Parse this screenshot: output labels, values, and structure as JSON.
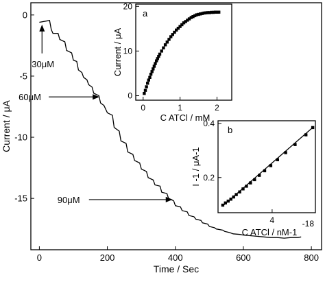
{
  "chart_data": [
    {
      "id": "main",
      "type": "line",
      "xlabel": "Time / Sec",
      "ylabel": "Current / μA",
      "xlim": [
        -25,
        830
      ],
      "ylim": [
        -19.2,
        1.0
      ],
      "xticks": [
        0,
        200,
        400,
        600,
        800
      ],
      "yticks": [
        0,
        -5,
        -10,
        -15
      ],
      "xtick_labels": [
        "0",
        "200",
        "400",
        "600",
        "800"
      ],
      "ytick_labels": [
        "0",
        "-5",
        "-10",
        "-15"
      ],
      "series": [
        {
          "points": [
            [
              0,
              -0.6
            ],
            [
              20,
              -0.5
            ],
            [
              30,
              -0.45
            ],
            [
              35,
              -1.2
            ],
            [
              40,
              -1.5
            ],
            [
              55,
              -1.5
            ],
            [
              60,
              -2.0
            ],
            [
              75,
              -2.2
            ],
            [
              80,
              -2.9
            ],
            [
              95,
              -3.1
            ],
            [
              100,
              -3.7
            ],
            [
              110,
              -3.8
            ],
            [
              115,
              -4.5
            ],
            [
              125,
              -4.7
            ],
            [
              130,
              -5.1
            ],
            [
              140,
              -5.3
            ],
            [
              145,
              -5.7
            ],
            [
              155,
              -5.9
            ],
            [
              160,
              -6.4
            ],
            [
              175,
              -6.6
            ],
            [
              180,
              -7.2
            ],
            [
              190,
              -7.4
            ],
            [
              200,
              -8.0
            ],
            [
              215,
              -8.2
            ],
            [
              220,
              -9.2
            ],
            [
              235,
              -9.5
            ],
            [
              240,
              -10.3
            ],
            [
              255,
              -10.5
            ],
            [
              260,
              -11.2
            ],
            [
              275,
              -11.4
            ],
            [
              280,
              -11.9
            ],
            [
              295,
              -12.1
            ],
            [
              300,
              -12.6
            ],
            [
              315,
              -12.8
            ],
            [
              320,
              -13.3
            ],
            [
              335,
              -13.5
            ],
            [
              340,
              -13.9
            ],
            [
              355,
              -14.0
            ],
            [
              360,
              -14.5
            ],
            [
              375,
              -14.6
            ],
            [
              380,
              -15.0
            ],
            [
              395,
              -15.2
            ],
            [
              400,
              -15.6
            ],
            [
              415,
              -15.7
            ],
            [
              420,
              -16.0
            ],
            [
              435,
              -16.1
            ],
            [
              440,
              -16.4
            ],
            [
              455,
              -16.5
            ],
            [
              460,
              -16.7
            ],
            [
              475,
              -16.8
            ],
            [
              480,
              -17.0
            ],
            [
              495,
              -17.1
            ],
            [
              500,
              -17.3
            ],
            [
              515,
              -17.4
            ],
            [
              520,
              -17.5
            ],
            [
              540,
              -17.6
            ],
            [
              545,
              -17.7
            ],
            [
              560,
              -17.8
            ],
            [
              570,
              -17.9
            ],
            [
              590,
              -17.95
            ],
            [
              600,
              -18.0
            ],
            [
              620,
              -18.05
            ],
            [
              640,
              -18.1
            ],
            [
              660,
              -18.15
            ],
            [
              680,
              -18.2
            ],
            [
              700,
              -18.2
            ],
            [
              720,
              -18.25
            ],
            [
              740,
              -18.2
            ],
            [
              760,
              -18.2
            ],
            [
              770,
              -18.15
            ]
          ]
        }
      ],
      "annotations": [
        {
          "text": "30μM",
          "x": 30,
          "y": -0.45
        },
        {
          "text": "60μM",
          "x": 185,
          "y": -6.7
        },
        {
          "text": "90μM",
          "x": 400,
          "y": -15.1
        }
      ]
    },
    {
      "id": "inset_a",
      "type": "scatter",
      "panel_label": "a",
      "xlabel": "C ATCl / mM",
      "ylabel": "Current / μA",
      "xlim": [
        -0.2,
        2.4
      ],
      "ylim": [
        -1,
        20.5
      ],
      "xticks": [
        0,
        1,
        2
      ],
      "yticks": [
        0,
        10,
        20
      ],
      "xtick_labels": [
        "0",
        "1",
        "2"
      ],
      "ytick_labels": [
        "0",
        "10",
        "20"
      ],
      "points": [
        [
          0.03,
          0.5
        ],
        [
          0.06,
          1.2
        ],
        [
          0.09,
          2.0
        ],
        [
          0.12,
          2.8
        ],
        [
          0.15,
          3.5
        ],
        [
          0.18,
          4.1
        ],
        [
          0.21,
          4.8
        ],
        [
          0.24,
          5.4
        ],
        [
          0.27,
          6.0
        ],
        [
          0.3,
          6.6
        ],
        [
          0.33,
          7.2
        ],
        [
          0.36,
          7.8
        ],
        [
          0.39,
          8.3
        ],
        [
          0.42,
          8.8
        ],
        [
          0.45,
          9.3
        ],
        [
          0.5,
          10.0
        ],
        [
          0.55,
          10.7
        ],
        [
          0.6,
          11.4
        ],
        [
          0.65,
          12.0
        ],
        [
          0.7,
          12.6
        ],
        [
          0.75,
          13.2
        ],
        [
          0.8,
          13.7
        ],
        [
          0.85,
          14.2
        ],
        [
          0.9,
          14.7
        ],
        [
          0.95,
          15.1
        ],
        [
          1.0,
          15.5
        ],
        [
          1.05,
          15.9
        ],
        [
          1.1,
          16.3
        ],
        [
          1.15,
          16.6
        ],
        [
          1.2,
          16.9
        ],
        [
          1.25,
          17.2
        ],
        [
          1.3,
          17.5
        ],
        [
          1.35,
          17.7
        ],
        [
          1.4,
          17.9
        ],
        [
          1.45,
          18.1
        ],
        [
          1.5,
          18.2
        ],
        [
          1.55,
          18.3
        ],
        [
          1.6,
          18.4
        ],
        [
          1.65,
          18.5
        ],
        [
          1.7,
          18.55
        ],
        [
          1.75,
          18.6
        ],
        [
          1.8,
          18.6
        ],
        [
          1.85,
          18.65
        ],
        [
          1.9,
          18.65
        ],
        [
          1.95,
          18.7
        ],
        [
          2.0,
          18.7
        ],
        [
          2.05,
          18.7
        ]
      ]
    },
    {
      "id": "inset_b",
      "type": "scatter",
      "panel_label": "b",
      "xlabel": "C ATCl / nM-1",
      "ylabel": "I -1 / μA-1",
      "x_corner_label": "-18",
      "xlim": [
        0.0,
        7.2
      ],
      "ylim": [
        0.07,
        0.41
      ],
      "xticks": [
        4
      ],
      "yticks": [
        0.2,
        0.4
      ],
      "xtick_labels": [
        "4"
      ],
      "ytick_labels": [
        "0.2",
        "0.4"
      ],
      "fit_line": [
        [
          0.35,
          0.095
        ],
        [
          7.0,
          0.385
        ]
      ],
      "points": [
        [
          0.35,
          0.098
        ],
        [
          0.55,
          0.106
        ],
        [
          0.75,
          0.113
        ],
        [
          0.95,
          0.12
        ],
        [
          1.15,
          0.128
        ],
        [
          1.35,
          0.137
        ],
        [
          1.6,
          0.147
        ],
        [
          1.85,
          0.158
        ],
        [
          2.1,
          0.168
        ],
        [
          2.4,
          0.18
        ],
        [
          2.7,
          0.192
        ],
        [
          3.05,
          0.208
        ],
        [
          3.45,
          0.225
        ],
        [
          3.9,
          0.244
        ],
        [
          4.4,
          0.266
        ],
        [
          5.0,
          0.292
        ],
        [
          5.7,
          0.322
        ],
        [
          6.5,
          0.358
        ],
        [
          7.0,
          0.385
        ]
      ]
    }
  ]
}
